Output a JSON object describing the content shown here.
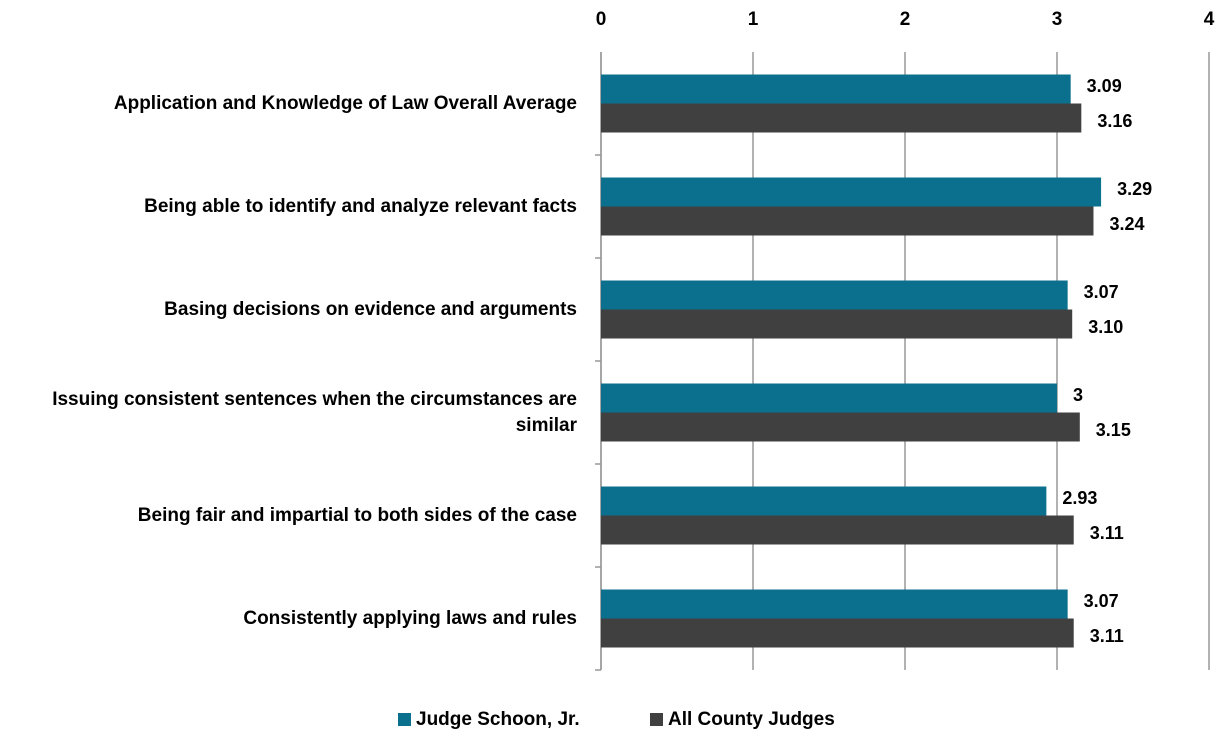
{
  "chart_data": {
    "type": "bar",
    "orientation": "horizontal",
    "categories": [
      "Application and Knowledge of Law Overall Average",
      "Being able to identify and analyze relevant facts",
      "Basing decisions on evidence and arguments",
      "Issuing consistent sentences when the circumstances are similar",
      "Being fair and impartial to both sides of the case",
      "Consistently applying laws and rules"
    ],
    "series": [
      {
        "name": "Judge Schoon, Jr.",
        "color": "#0b6f8e",
        "values": [
          3.09,
          3.29,
          3.07,
          3,
          2.93,
          3.07
        ],
        "value_labels": [
          "3.09",
          "3.29",
          "3.07",
          "3",
          "2.93",
          "3.07"
        ]
      },
      {
        "name": "All County Judges",
        "color": "#404040",
        "values": [
          3.16,
          3.24,
          3.1,
          3.15,
          3.11,
          3.11
        ],
        "value_labels": [
          "3.16",
          "3.24",
          "3.10",
          "3.15",
          "3.11",
          "3.11"
        ]
      }
    ],
    "xlim": [
      0,
      4
    ],
    "xticks": [
      0,
      1,
      2,
      3,
      4
    ],
    "grid": true,
    "legend": "bottom"
  }
}
